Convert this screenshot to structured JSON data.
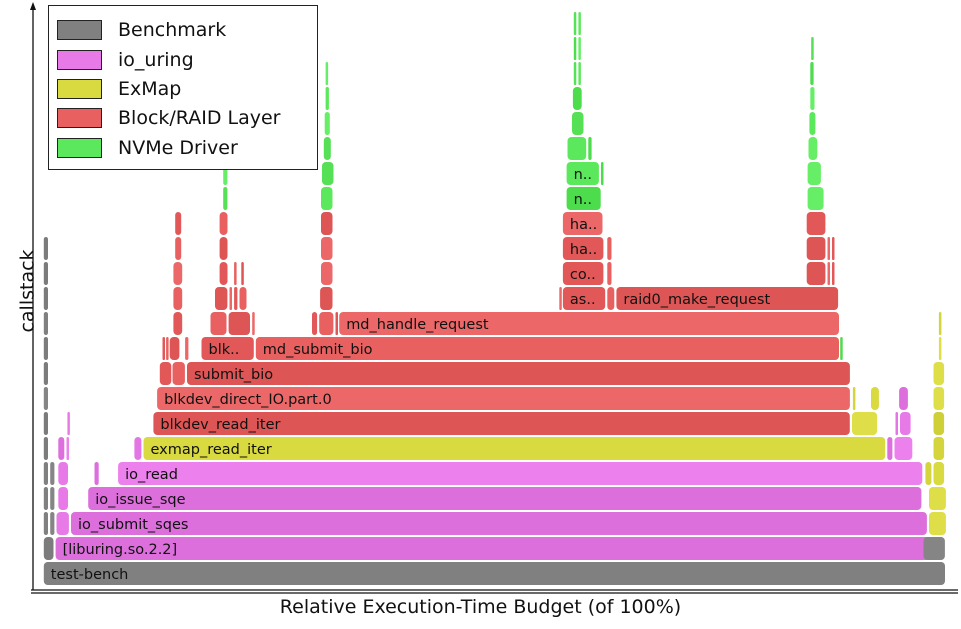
{
  "chart_data": {
    "type": "flamegraph",
    "title": "",
    "xlabel": "Relative Execution-Time Budget (of 100%)",
    "ylabel": "callstack",
    "xlim": [
      0,
      100
    ],
    "legend": {
      "placement": "top-left",
      "entries": [
        {
          "name": "Benchmark",
          "color": "#808080"
        },
        {
          "name": "io_uring",
          "color": "#e87ae8"
        },
        {
          "name": "ExMap",
          "color": "#d9d940"
        },
        {
          "name": "Block/RAID Layer",
          "color": "#e86060"
        },
        {
          "name": "NVMe Driver",
          "color": "#5ce85c"
        }
      ]
    },
    "frames": [
      {
        "level": 0,
        "start": 0.2,
        "width": 99.6,
        "cat": "Benchmark",
        "label": "test-bench"
      },
      {
        "level": 1,
        "start": 0.2,
        "width": 1.2,
        "cat": "Benchmark",
        "label": ""
      },
      {
        "level": 1,
        "start": 1.5,
        "width": 96.7,
        "cat": "io_uring",
        "label": "[liburing.so.2.2]"
      },
      {
        "level": 1,
        "start": 97.3,
        "width": 2.5,
        "cat": "Benchmark",
        "label": ""
      },
      {
        "level": 2,
        "start": 0.2,
        "width": 0.6,
        "cat": "Benchmark",
        "label": ""
      },
      {
        "level": 2,
        "start": 0.9,
        "width": 0.6,
        "cat": "Benchmark",
        "label": ""
      },
      {
        "level": 2,
        "start": 1.6,
        "width": 1.5,
        "cat": "io_uring",
        "label": ""
      },
      {
        "level": 2,
        "start": 3.2,
        "width": 94.6,
        "cat": "io_uring",
        "label": "io_submit_sqes"
      },
      {
        "level": 2,
        "start": 97.9,
        "width": 2.0,
        "cat": "ExMap",
        "label": ""
      },
      {
        "level": 3,
        "start": 0.2,
        "width": 0.6,
        "cat": "Benchmark",
        "label": ""
      },
      {
        "level": 3,
        "start": 0.9,
        "width": 0.6,
        "cat": "Benchmark",
        "label": ""
      },
      {
        "level": 3,
        "start": 1.8,
        "width": 1.2,
        "cat": "io_uring",
        "label": ""
      },
      {
        "level": 3,
        "start": 5.1,
        "width": 92.1,
        "cat": "io_uring",
        "label": "io_issue_sqe"
      },
      {
        "level": 3,
        "start": 97.9,
        "width": 2.0,
        "cat": "ExMap",
        "label": ""
      },
      {
        "level": 4,
        "start": 0.2,
        "width": 0.6,
        "cat": "Benchmark",
        "label": ""
      },
      {
        "level": 4,
        "start": 0.9,
        "width": 0.6,
        "cat": "Benchmark",
        "label": ""
      },
      {
        "level": 4,
        "start": 1.8,
        "width": 1.2,
        "cat": "io_uring",
        "label": ""
      },
      {
        "level": 4,
        "start": 5.8,
        "width": 0.6,
        "cat": "io_uring",
        "label": ""
      },
      {
        "level": 4,
        "start": 8.4,
        "width": 88.9,
        "cat": "io_uring",
        "label": "io_read"
      },
      {
        "level": 4,
        "start": 97.5,
        "width": 0.8,
        "cat": "ExMap",
        "label": ""
      },
      {
        "level": 4,
        "start": 98.4,
        "width": 1.3,
        "cat": "ExMap",
        "label": ""
      },
      {
        "level": 5,
        "start": 0.2,
        "width": 0.6,
        "cat": "Benchmark",
        "label": ""
      },
      {
        "level": 5,
        "start": 1.8,
        "width": 0.8,
        "cat": "io_uring",
        "label": ""
      },
      {
        "level": 5,
        "start": 2.7,
        "width": 0.4,
        "cat": "io_uring",
        "label": ""
      },
      {
        "level": 5,
        "start": 10.2,
        "width": 0.9,
        "cat": "io_uring",
        "label": ""
      },
      {
        "level": 5,
        "start": 11.2,
        "width": 82.0,
        "cat": "ExMap",
        "label": "exmap_read_iter"
      },
      {
        "level": 5,
        "start": 93.3,
        "width": 0.7,
        "cat": "io_uring",
        "label": ""
      },
      {
        "level": 5,
        "start": 94.1,
        "width": 2.1,
        "cat": "io_uring",
        "label": ""
      },
      {
        "level": 5,
        "start": 98.4,
        "width": 1.3,
        "cat": "ExMap",
        "label": ""
      },
      {
        "level": 6,
        "start": 0.2,
        "width": 0.6,
        "cat": "Benchmark",
        "label": ""
      },
      {
        "level": 6,
        "start": 2.8,
        "width": 0.3,
        "cat": "io_uring",
        "label": ""
      },
      {
        "level": 6,
        "start": 12.3,
        "width": 77.0,
        "cat": "Block/RAID Layer",
        "label": "blkdev_read_iter"
      },
      {
        "level": 6,
        "start": 89.4,
        "width": 2.9,
        "cat": "ExMap",
        "label": ""
      },
      {
        "level": 6,
        "start": 94.2,
        "width": 0.4,
        "cat": "io_uring",
        "label": ""
      },
      {
        "level": 6,
        "start": 94.7,
        "width": 1.3,
        "cat": "io_uring",
        "label": ""
      },
      {
        "level": 6,
        "start": 98.4,
        "width": 1.3,
        "cat": "ExMap",
        "label": ""
      },
      {
        "level": 7,
        "start": 0.2,
        "width": 0.6,
        "cat": "Benchmark",
        "label": ""
      },
      {
        "level": 7,
        "start": 12.7,
        "width": 76.6,
        "cat": "Block/RAID Layer",
        "label": "blkdev_direct_IO.part.0"
      },
      {
        "level": 7,
        "start": 89.5,
        "width": 0.3,
        "cat": "ExMap",
        "label": ""
      },
      {
        "level": 7,
        "start": 91.5,
        "width": 1.0,
        "cat": "ExMap",
        "label": ""
      },
      {
        "level": 7,
        "start": 94.6,
        "width": 1.1,
        "cat": "io_uring",
        "label": ""
      },
      {
        "level": 7,
        "start": 98.4,
        "width": 1.3,
        "cat": "ExMap",
        "label": ""
      },
      {
        "level": 8,
        "start": 0.2,
        "width": 0.6,
        "cat": "Benchmark",
        "label": ""
      },
      {
        "level": 8,
        "start": 13.0,
        "width": 1.4,
        "cat": "Block/RAID Layer",
        "label": ""
      },
      {
        "level": 8,
        "start": 14.4,
        "width": 1.5,
        "cat": "Block/RAID Layer",
        "label": ""
      },
      {
        "level": 8,
        "start": 16.0,
        "width": 73.3,
        "cat": "Block/RAID Layer",
        "label": "submit_bio"
      },
      {
        "level": 8,
        "start": 98.4,
        "width": 1.3,
        "cat": "ExMap",
        "label": ""
      },
      {
        "level": 9,
        "start": 0.2,
        "width": 0.6,
        "cat": "Benchmark",
        "label": ""
      },
      {
        "level": 9,
        "start": 13.3,
        "width": 0.3,
        "cat": "Block/RAID Layer",
        "label": ""
      },
      {
        "level": 9,
        "start": 13.7,
        "width": 0.3,
        "cat": "Block/RAID Layer",
        "label": ""
      },
      {
        "level": 9,
        "start": 14.1,
        "width": 1.2,
        "cat": "Block/RAID Layer",
        "label": ""
      },
      {
        "level": 9,
        "start": 15.8,
        "width": 0.5,
        "cat": "Block/RAID Layer",
        "label": ""
      },
      {
        "level": 9,
        "start": 17.6,
        "width": 5.9,
        "cat": "Block/RAID Layer",
        "label": "blk.."
      },
      {
        "level": 9,
        "start": 23.6,
        "width": 64.5,
        "cat": "Block/RAID Layer",
        "label": "md_submit_bio"
      },
      {
        "level": 9,
        "start": 88.1,
        "width": 0.4,
        "cat": "NVMe Driver",
        "label": ""
      },
      {
        "level": 9,
        "start": 99.0,
        "width": 0.4,
        "cat": "ExMap",
        "label": ""
      },
      {
        "level": 10,
        "start": 0.2,
        "width": 0.6,
        "cat": "Benchmark",
        "label": ""
      },
      {
        "level": 10,
        "start": 14.5,
        "width": 1.1,
        "cat": "Block/RAID Layer",
        "label": ""
      },
      {
        "level": 10,
        "start": 18.6,
        "width": 1.9,
        "cat": "Block/RAID Layer",
        "label": ""
      },
      {
        "level": 10,
        "start": 20.6,
        "width": 2.5,
        "cat": "Block/RAID Layer",
        "label": ""
      },
      {
        "level": 10,
        "start": 23.2,
        "width": 0.4,
        "cat": "Block/RAID Layer",
        "label": ""
      },
      {
        "level": 10,
        "start": 29.8,
        "width": 0.7,
        "cat": "Block/RAID Layer",
        "label": ""
      },
      {
        "level": 10,
        "start": 30.6,
        "width": 1.7,
        "cat": "Block/RAID Layer",
        "label": ""
      },
      {
        "level": 10,
        "start": 32.4,
        "width": 0.3,
        "cat": "Block/RAID Layer",
        "label": ""
      },
      {
        "level": 10,
        "start": 32.8,
        "width": 55.3,
        "cat": "Block/RAID Layer",
        "label": "md_handle_request"
      },
      {
        "level": 10,
        "start": 99.0,
        "width": 0.4,
        "cat": "ExMap",
        "label": ""
      },
      {
        "level": 11,
        "start": 0.2,
        "width": 0.6,
        "cat": "Benchmark",
        "label": ""
      },
      {
        "level": 11,
        "start": 14.5,
        "width": 1.1,
        "cat": "Block/RAID Layer",
        "label": ""
      },
      {
        "level": 11,
        "start": 19.1,
        "width": 1.5,
        "cat": "Block/RAID Layer",
        "label": ""
      },
      {
        "level": 11,
        "start": 20.7,
        "width": 0.4,
        "cat": "Block/RAID Layer",
        "label": ""
      },
      {
        "level": 11,
        "start": 21.2,
        "width": 0.5,
        "cat": "Block/RAID Layer",
        "label": ""
      },
      {
        "level": 11,
        "start": 21.8,
        "width": 0.9,
        "cat": "Block/RAID Layer",
        "label": ""
      },
      {
        "level": 11,
        "start": 30.7,
        "width": 1.5,
        "cat": "Block/RAID Layer",
        "label": ""
      },
      {
        "level": 11,
        "start": 57.1,
        "width": 0.3,
        "cat": "Block/RAID Layer",
        "label": ""
      },
      {
        "level": 11,
        "start": 57.5,
        "width": 4.8,
        "cat": "Block/RAID Layer",
        "label": "as.."
      },
      {
        "level": 11,
        "start": 62.4,
        "width": 0.9,
        "cat": "Block/RAID Layer",
        "label": ""
      },
      {
        "level": 11,
        "start": 63.4,
        "width": 24.6,
        "cat": "Block/RAID Layer",
        "label": "raid0_make_request"
      },
      {
        "level": 12,
        "start": 0.2,
        "width": 0.6,
        "cat": "Benchmark",
        "label": ""
      },
      {
        "level": 12,
        "start": 14.5,
        "width": 1.1,
        "cat": "Block/RAID Layer",
        "label": ""
      },
      {
        "level": 12,
        "start": 19.6,
        "width": 1.0,
        "cat": "Block/RAID Layer",
        "label": ""
      },
      {
        "level": 12,
        "start": 21.2,
        "width": 0.4,
        "cat": "Block/RAID Layer",
        "label": ""
      },
      {
        "level": 12,
        "start": 22.0,
        "width": 0.4,
        "cat": "Block/RAID Layer",
        "label": ""
      },
      {
        "level": 12,
        "start": 30.8,
        "width": 1.4,
        "cat": "Block/RAID Layer",
        "label": ""
      },
      {
        "level": 12,
        "start": 57.5,
        "width": 4.6,
        "cat": "Block/RAID Layer",
        "label": "co.."
      },
      {
        "level": 12,
        "start": 62.4,
        "width": 0.6,
        "cat": "Block/RAID Layer",
        "label": ""
      },
      {
        "level": 12,
        "start": 84.4,
        "width": 2.2,
        "cat": "Block/RAID Layer",
        "label": ""
      },
      {
        "level": 12,
        "start": 86.7,
        "width": 0.4,
        "cat": "Block/RAID Layer",
        "label": ""
      },
      {
        "level": 12,
        "start": 87.2,
        "width": 0.4,
        "cat": "Block/RAID Layer",
        "label": ""
      },
      {
        "level": 13,
        "start": 0.2,
        "width": 0.6,
        "cat": "Benchmark",
        "label": ""
      },
      {
        "level": 13,
        "start": 14.7,
        "width": 0.8,
        "cat": "Block/RAID Layer",
        "label": ""
      },
      {
        "level": 13,
        "start": 19.6,
        "width": 1.0,
        "cat": "Block/RAID Layer",
        "label": ""
      },
      {
        "level": 13,
        "start": 30.8,
        "width": 1.4,
        "cat": "Block/RAID Layer",
        "label": ""
      },
      {
        "level": 13,
        "start": 57.5,
        "width": 4.6,
        "cat": "Block/RAID Layer",
        "label": "ha.."
      },
      {
        "level": 13,
        "start": 62.4,
        "width": 0.6,
        "cat": "Block/RAID Layer",
        "label": ""
      },
      {
        "level": 13,
        "start": 84.4,
        "width": 2.2,
        "cat": "Block/RAID Layer",
        "label": ""
      },
      {
        "level": 13,
        "start": 86.7,
        "width": 0.4,
        "cat": "Block/RAID Layer",
        "label": ""
      },
      {
        "level": 13,
        "start": 87.2,
        "width": 0.4,
        "cat": "Block/RAID Layer",
        "label": ""
      },
      {
        "level": 14,
        "start": 14.7,
        "width": 0.8,
        "cat": "Block/RAID Layer",
        "label": ""
      },
      {
        "level": 14,
        "start": 19.6,
        "width": 1.0,
        "cat": "Block/RAID Layer",
        "label": ""
      },
      {
        "level": 14,
        "start": 30.8,
        "width": 1.4,
        "cat": "Block/RAID Layer",
        "label": ""
      },
      {
        "level": 14,
        "start": 57.5,
        "width": 4.5,
        "cat": "Block/RAID Layer",
        "label": "ha.."
      },
      {
        "level": 14,
        "start": 84.4,
        "width": 2.2,
        "cat": "Block/RAID Layer",
        "label": ""
      },
      {
        "level": 15,
        "start": 20.0,
        "width": 0.6,
        "cat": "NVMe Driver",
        "label": ""
      },
      {
        "level": 15,
        "start": 30.8,
        "width": 1.4,
        "cat": "NVMe Driver",
        "label": ""
      },
      {
        "level": 15,
        "start": 57.9,
        "width": 3.9,
        "cat": "NVMe Driver",
        "label": "n.."
      },
      {
        "level": 15,
        "start": 84.5,
        "width": 1.9,
        "cat": "NVMe Driver",
        "label": ""
      },
      {
        "level": 16,
        "start": 20.0,
        "width": 0.6,
        "cat": "NVMe Driver",
        "label": ""
      },
      {
        "level": 16,
        "start": 30.9,
        "width": 1.4,
        "cat": "NVMe Driver",
        "label": ""
      },
      {
        "level": 16,
        "start": 57.9,
        "width": 3.7,
        "cat": "NVMe Driver",
        "label": "n.."
      },
      {
        "level": 16,
        "start": 61.7,
        "width": 0.4,
        "cat": "NVMe Driver",
        "label": ""
      },
      {
        "level": 16,
        "start": 84.5,
        "width": 1.6,
        "cat": "NVMe Driver",
        "label": ""
      },
      {
        "level": 17,
        "start": 20.1,
        "width": 0.4,
        "cat": "NVMe Driver",
        "label": ""
      },
      {
        "level": 17,
        "start": 31.1,
        "width": 0.9,
        "cat": "NVMe Driver",
        "label": ""
      },
      {
        "level": 17,
        "start": 58.0,
        "width": 2.2,
        "cat": "NVMe Driver",
        "label": ""
      },
      {
        "level": 17,
        "start": 60.3,
        "width": 0.5,
        "cat": "NVMe Driver",
        "label": ""
      },
      {
        "level": 17,
        "start": 84.6,
        "width": 1.1,
        "cat": "NVMe Driver",
        "label": ""
      },
      {
        "level": 18,
        "start": 31.2,
        "width": 0.7,
        "cat": "NVMe Driver",
        "label": ""
      },
      {
        "level": 18,
        "start": 58.5,
        "width": 1.4,
        "cat": "NVMe Driver",
        "label": ""
      },
      {
        "level": 18,
        "start": 84.7,
        "width": 0.8,
        "cat": "NVMe Driver",
        "label": ""
      },
      {
        "level": 19,
        "start": 31.3,
        "width": 0.5,
        "cat": "NVMe Driver",
        "label": ""
      },
      {
        "level": 19,
        "start": 58.6,
        "width": 1.1,
        "cat": "NVMe Driver",
        "label": ""
      },
      {
        "level": 19,
        "start": 84.8,
        "width": 0.6,
        "cat": "NVMe Driver",
        "label": ""
      },
      {
        "level": 20,
        "start": 31.3,
        "width": 0.4,
        "cat": "NVMe Driver",
        "label": ""
      },
      {
        "level": 20,
        "start": 58.7,
        "width": 0.4,
        "cat": "NVMe Driver",
        "label": ""
      },
      {
        "level": 20,
        "start": 59.2,
        "width": 0.4,
        "cat": "NVMe Driver",
        "label": ""
      },
      {
        "level": 20,
        "start": 84.8,
        "width": 0.5,
        "cat": "NVMe Driver",
        "label": ""
      },
      {
        "level": 21,
        "start": 58.7,
        "width": 0.4,
        "cat": "NVMe Driver",
        "label": ""
      },
      {
        "level": 21,
        "start": 59.2,
        "width": 0.4,
        "cat": "NVMe Driver",
        "label": ""
      },
      {
        "level": 21,
        "start": 84.9,
        "width": 0.3,
        "cat": "NVMe Driver",
        "label": ""
      },
      {
        "level": 22,
        "start": 58.7,
        "width": 0.3,
        "cat": "NVMe Driver",
        "label": ""
      },
      {
        "level": 22,
        "start": 59.2,
        "width": 0.3,
        "cat": "NVMe Driver",
        "label": ""
      }
    ]
  }
}
